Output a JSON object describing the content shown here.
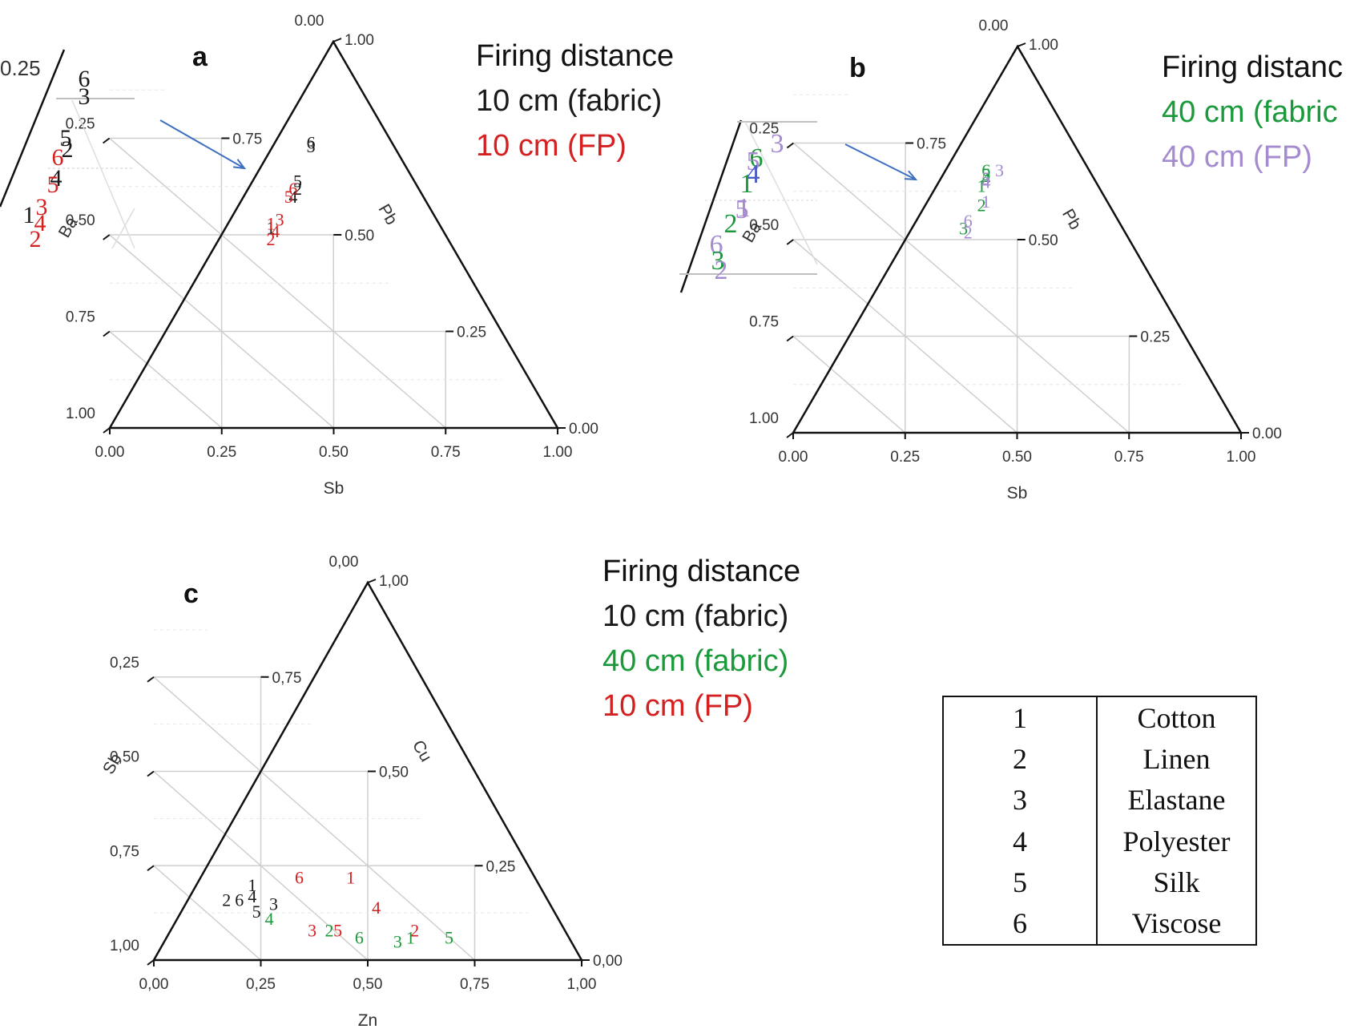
{
  "panels": [
    {
      "letter": "a",
      "left_axis": "Ba",
      "right_axis": "Pb",
      "bottom_axis": "Sb",
      "ticks_left": [
        "0.25",
        "0.50",
        "0.75",
        "1.00"
      ],
      "ticks_right": [
        "0.75",
        "0.50",
        "0.25",
        "0.00"
      ],
      "ticks_bottom": [
        "0.00",
        "0.25",
        "0.50",
        "0.75",
        "1.00"
      ],
      "tick_top": "0.00",
      "tick_apex": "1.00",
      "legend_title": "Firing distance",
      "legend_lines": [
        "10 cm (fabric)",
        "10 cm (FP)"
      ]
    },
    {
      "letter": "b",
      "left_axis": "Ba",
      "right_axis": "Pb",
      "bottom_axis": "Sb",
      "ticks_left": [
        "0.25",
        "0.50",
        "0.75",
        "1.00"
      ],
      "ticks_right": [
        "0.75",
        "0.50",
        "0.25",
        "0.00"
      ],
      "ticks_bottom": [
        "0.00",
        "0.25",
        "0.50",
        "0.75",
        "1.00"
      ],
      "tick_top": "0.00",
      "tick_apex": "1.00",
      "legend_title": "Firing distanc",
      "legend_lines": [
        "40 cm (fabric",
        "40 cm (FP)"
      ]
    },
    {
      "letter": "c",
      "left_axis": "Sb",
      "right_axis": "Cu",
      "bottom_axis": "Zn",
      "ticks_left": [
        "0,25",
        "0,50",
        "0,75",
        "1,00"
      ],
      "ticks_right": [
        "0,75",
        "0,50",
        "0,25",
        "0,00"
      ],
      "ticks_bottom": [
        "0,00",
        "0,25",
        "0,50",
        "0,75",
        "1,00"
      ],
      "tick_top": "0,00",
      "tick_apex": "1,00",
      "legend_title": "Firing distance",
      "legend_lines": [
        "10 cm (fabric)",
        "40 cm (fabric)",
        "10 cm (FP)"
      ]
    }
  ],
  "inset_a_tick": "0.25",
  "legend_table": [
    {
      "code": "1",
      "material": "Cotton"
    },
    {
      "code": "2",
      "material": "Linen"
    },
    {
      "code": "3",
      "material": "Elastane"
    },
    {
      "code": "4",
      "material": "Polyester"
    },
    {
      "code": "5",
      "material": "Silk"
    },
    {
      "code": "6",
      "material": "Viscose"
    }
  ],
  "colors": {
    "fabric_10cm": "#1a1a1a",
    "fp_10cm": "#d42020",
    "fabric_40cm": "#1a9a3a",
    "fp_40cm": "#a58bd0",
    "marker_blue": "#4a5cc8",
    "arrow": "#3c6fbf",
    "grid": "#cfcfcf"
  },
  "chart_data": [
    {
      "type": "scatter",
      "subtype": "ternary",
      "panel": "a",
      "axes": {
        "left": "Ba",
        "right": "Pb",
        "bottom": "Sb"
      },
      "series": [
        {
          "name": "10 cm (fabric)",
          "color": "#1a1a1a",
          "points": [
            {
              "label": "1",
              "bottom": 0.36,
              "right": 0.52
            },
            {
              "label": "2",
              "bottom": 0.42,
              "right": 0.62
            },
            {
              "label": "3",
              "bottom": 0.45,
              "right": 0.73
            },
            {
              "label": "4",
              "bottom": 0.41,
              "right": 0.6
            },
            {
              "label": "5",
              "bottom": 0.42,
              "right": 0.64
            },
            {
              "label": "6",
              "bottom": 0.45,
              "right": 0.74
            }
          ]
        },
        {
          "name": "10 cm (FP)",
          "color": "#d42020",
          "points": [
            {
              "label": "1",
              "bottom": 0.36,
              "right": 0.53
            },
            {
              "label": "2",
              "bottom": 0.36,
              "right": 0.49
            },
            {
              "label": "3",
              "bottom": 0.38,
              "right": 0.54
            },
            {
              "label": "4",
              "bottom": 0.37,
              "right": 0.51
            },
            {
              "label": "5",
              "bottom": 0.4,
              "right": 0.6
            },
            {
              "label": "6",
              "bottom": 0.41,
              "right": 0.62
            }
          ]
        }
      ]
    },
    {
      "type": "scatter",
      "subtype": "ternary",
      "panel": "b",
      "axes": {
        "left": "Ba",
        "right": "Pb",
        "bottom": "Sb"
      },
      "series": [
        {
          "name": "40 cm (fabric)",
          "color": "#1a9a3a",
          "points": [
            {
              "label": "1",
              "bottom": 0.42,
              "right": 0.64
            },
            {
              "label": "2",
              "bottom": 0.42,
              "right": 0.59
            },
            {
              "label": "3",
              "bottom": 0.38,
              "right": 0.53
            },
            {
              "label": "4",
              "bottom": 0.43,
              "right": 0.66
            },
            {
              "label": "5",
              "bottom": 0.43,
              "right": 0.67
            },
            {
              "label": "6",
              "bottom": 0.43,
              "right": 0.68
            }
          ]
        },
        {
          "name": "40 cm (FP)",
          "color": "#a58bd0",
          "points": [
            {
              "label": "1",
              "bottom": 0.43,
              "right": 0.6
            },
            {
              "label": "2",
              "bottom": 0.39,
              "right": 0.52
            },
            {
              "label": "3",
              "bottom": 0.46,
              "right": 0.68
            },
            {
              "label": "4",
              "bottom": 0.43,
              "right": 0.65
            },
            {
              "label": "5",
              "bottom": 0.43,
              "right": 0.66
            },
            {
              "label": "6",
              "bottom": 0.39,
              "right": 0.55
            }
          ]
        }
      ]
    },
    {
      "type": "scatter",
      "subtype": "ternary",
      "panel": "c",
      "axes": {
        "left": "Sb",
        "right": "Cu",
        "bottom": "Zn"
      },
      "series": [
        {
          "name": "10 cm (fabric)",
          "color": "#1a1a1a",
          "points": [
            {
              "label": "1",
              "bottom": 0.23,
              "right": 0.2
            },
            {
              "label": "2",
              "bottom": 0.17,
              "right": 0.16
            },
            {
              "label": "3",
              "bottom": 0.28,
              "right": 0.15
            },
            {
              "label": "4",
              "bottom": 0.23,
              "right": 0.17
            },
            {
              "label": "5",
              "bottom": 0.24,
              "right": 0.13
            },
            {
              "label": "6",
              "bottom": 0.2,
              "right": 0.16
            }
          ]
        },
        {
          "name": "40 cm (fabric)",
          "color": "#1a9a3a",
          "points": [
            {
              "label": "1",
              "bottom": 0.6,
              "right": 0.06
            },
            {
              "label": "2",
              "bottom": 0.41,
              "right": 0.08
            },
            {
              "label": "3",
              "bottom": 0.57,
              "right": 0.05
            },
            {
              "label": "4",
              "bottom": 0.27,
              "right": 0.11
            },
            {
              "label": "5",
              "bottom": 0.69,
              "right": 0.06
            },
            {
              "label": "6",
              "bottom": 0.48,
              "right": 0.06
            }
          ]
        },
        {
          "name": "10 cm (FP)",
          "color": "#d42020",
          "points": [
            {
              "label": "1",
              "bottom": 0.46,
              "right": 0.22
            },
            {
              "label": "2",
              "bottom": 0.61,
              "right": 0.08
            },
            {
              "label": "3",
              "bottom": 0.37,
              "right": 0.08
            },
            {
              "label": "4",
              "bottom": 0.52,
              "right": 0.14
            },
            {
              "label": "5",
              "bottom": 0.43,
              "right": 0.08
            },
            {
              "label": "6",
              "bottom": 0.34,
              "right": 0.22
            }
          ]
        }
      ]
    }
  ]
}
